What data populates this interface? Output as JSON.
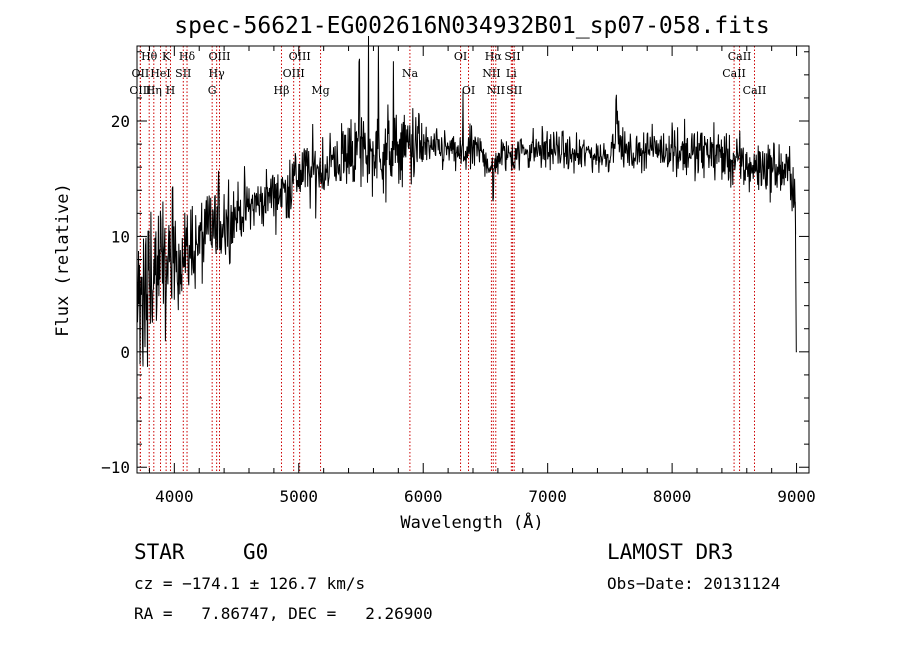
{
  "chart_data": {
    "type": "line",
    "title": "spec-56621-EG002616N034932B01_sp07-058.fits",
    "xlabel": "Wavelength (Å)",
    "ylabel": "Flux (relative)",
    "xlim": [
      3700,
      9100
    ],
    "ylim": [
      -10.5,
      26.5
    ],
    "x_ticks": [
      4000,
      5000,
      6000,
      7000,
      8000,
      9000
    ],
    "x_tick_labels": [
      "4000",
      "5000",
      "6000",
      "7000",
      "8000",
      "9000"
    ],
    "y_ticks": [
      -10,
      0,
      10,
      20
    ],
    "y_tick_labels": [
      "−10",
      "0",
      "10",
      "20"
    ],
    "spectrum_anchors": {
      "x": [
        3700,
        3750,
        3800,
        3850,
        3900,
        3950,
        4000,
        4100,
        4200,
        4300,
        4400,
        4500,
        4600,
        4700,
        4800,
        4900,
        5000,
        5100,
        5200,
        5300,
        5400,
        5500,
        5600,
        5700,
        5800,
        5900,
        6000,
        6100,
        6200,
        6300,
        6400,
        6500,
        6563,
        6600,
        6700,
        6800,
        6900,
        7000,
        7100,
        7200,
        7300,
        7400,
        7500,
        7550,
        7600,
        7700,
        7800,
        7900,
        8000,
        8100,
        8200,
        8300,
        8400,
        8500,
        8600,
        8700,
        8800,
        8900,
        8960,
        8990,
        9000
      ],
      "y": [
        4.5,
        6.0,
        6.5,
        7.0,
        7.0,
        7.5,
        8.0,
        8.5,
        9.5,
        10.5,
        11.5,
        12.0,
        12.5,
        13.0,
        13.8,
        14.0,
        15.5,
        15.5,
        16.0,
        16.5,
        17.0,
        17.5,
        17.0,
        17.5,
        17.5,
        18.0,
        17.8,
        17.5,
        17.5,
        17.0,
        17.5,
        17.0,
        15.5,
        17.0,
        17.0,
        17.5,
        17.5,
        17.5,
        17.5,
        17.0,
        17.2,
        17.0,
        17.0,
        19.5,
        17.5,
        17.0,
        17.8,
        17.5,
        17.5,
        17.5,
        17.0,
        17.5,
        17.0,
        16.5,
        16.0,
        16.0,
        16.0,
        15.5,
        15.5,
        13.0,
        0.0
      ]
    },
    "spectral_lines": [
      {
        "label": "Hθ",
        "x": 3798,
        "row": 1
      },
      {
        "label": "OII",
        "x": 3727,
        "row": 2
      },
      {
        "label": "OIII",
        "x": 3727,
        "row": 3
      },
      {
        "label": "K",
        "x": 3934,
        "row": 1
      },
      {
        "label": "HeI",
        "x": 3889,
        "row": 2
      },
      {
        "label": "Hη",
        "x": 3835,
        "row": 3
      },
      {
        "label": "Hδ",
        "x": 4102,
        "row": 1
      },
      {
        "label": "SII",
        "x": 4072,
        "row": 2
      },
      {
        "label": "H",
        "x": 3969,
        "row": 3
      },
      {
        "label": "OIII",
        "x": 4363,
        "row": 1
      },
      {
        "label": "Hγ",
        "x": 4340,
        "row": 2
      },
      {
        "label": "G",
        "x": 4304,
        "row": 3
      },
      {
        "label": "OIII",
        "x": 5007,
        "row": 1
      },
      {
        "label": "OIII",
        "x": 4959,
        "row": 2
      },
      {
        "label": "Hβ",
        "x": 4861,
        "row": 3
      },
      {
        "label": "Mg",
        "x": 5175,
        "row": 3
      },
      {
        "label": "Na",
        "x": 5893,
        "row": 2
      },
      {
        "label": "OI",
        "x": 6300,
        "row": 1
      },
      {
        "label": "OI",
        "x": 6364,
        "row": 3
      },
      {
        "label": "Hα",
        "x": 6563,
        "row": 1
      },
      {
        "label": "NII",
        "x": 6548,
        "row": 2
      },
      {
        "label": "NII",
        "x": 6583,
        "row": 3
      },
      {
        "label": "SII",
        "x": 6717,
        "row": 1
      },
      {
        "label": "Li",
        "x": 6708,
        "row": 2
      },
      {
        "label": "SII",
        "x": 6731,
        "row": 3
      },
      {
        "label": "CaII",
        "x": 8542,
        "row": 1
      },
      {
        "label": "CaII",
        "x": 8498,
        "row": 2
      },
      {
        "label": "CaII",
        "x": 8662,
        "row": 3
      }
    ]
  },
  "info": {
    "object_class": "STAR",
    "subclass": "G0",
    "survey": "LAMOST DR3",
    "cz": "cz = −174.1 ± 126.7 km/s",
    "obs_date": "Obs−Date: 20131124",
    "coords": "RA =   7.86747, DEC =   2.26900"
  },
  "colors": {
    "spectrum": "#000000",
    "line_markers": "#cc0000",
    "background": "#ffffff"
  }
}
